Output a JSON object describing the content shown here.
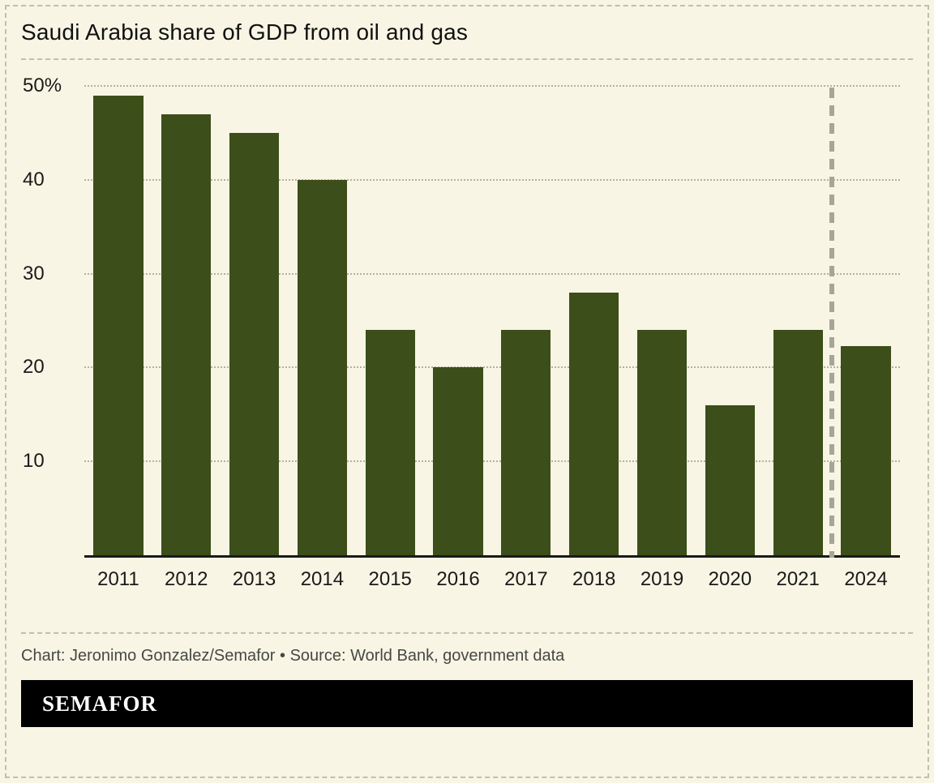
{
  "page": {
    "title": "Saudi Arabia share of GDP from oil and gas",
    "attribution": "Chart: Jeronimo Gonzalez/Semafor • Source: World Bank, government data",
    "logo_text": "SEMAFOR"
  },
  "colors": {
    "background": "#f8f5e4",
    "bar": "#3c4e1a",
    "gridline": "#b5b1a0",
    "break_line": "#a6a698",
    "axis_line": "#1a1a1a",
    "title_text": "#111111",
    "attribution_text": "#474747",
    "logo_background": "#000000",
    "logo_text": "#ffffff",
    "border_dashed": "#c2bfad"
  },
  "chart_data": {
    "type": "bar",
    "title": "Saudi Arabia share of GDP from oil and gas",
    "categories": [
      "2011",
      "2012",
      "2013",
      "2014",
      "2015",
      "2016",
      "2017",
      "2018",
      "2019",
      "2020",
      "2021",
      "2024"
    ],
    "values": [
      49,
      47,
      45,
      40,
      24,
      20,
      24,
      28,
      24,
      16,
      24,
      22.3
    ],
    "xlabel": "",
    "ylabel": "",
    "ylim": [
      0,
      50
    ],
    "yticks": [
      10,
      20,
      30,
      40,
      50
    ],
    "ytick_labels": [
      "10",
      "20",
      "30",
      "40",
      "50%"
    ],
    "grid": "horizontal-dotted",
    "legend": "none",
    "break_after_index": 10,
    "break_note": "dashed vertical line separates 2021 and 2024 (year gap)"
  }
}
